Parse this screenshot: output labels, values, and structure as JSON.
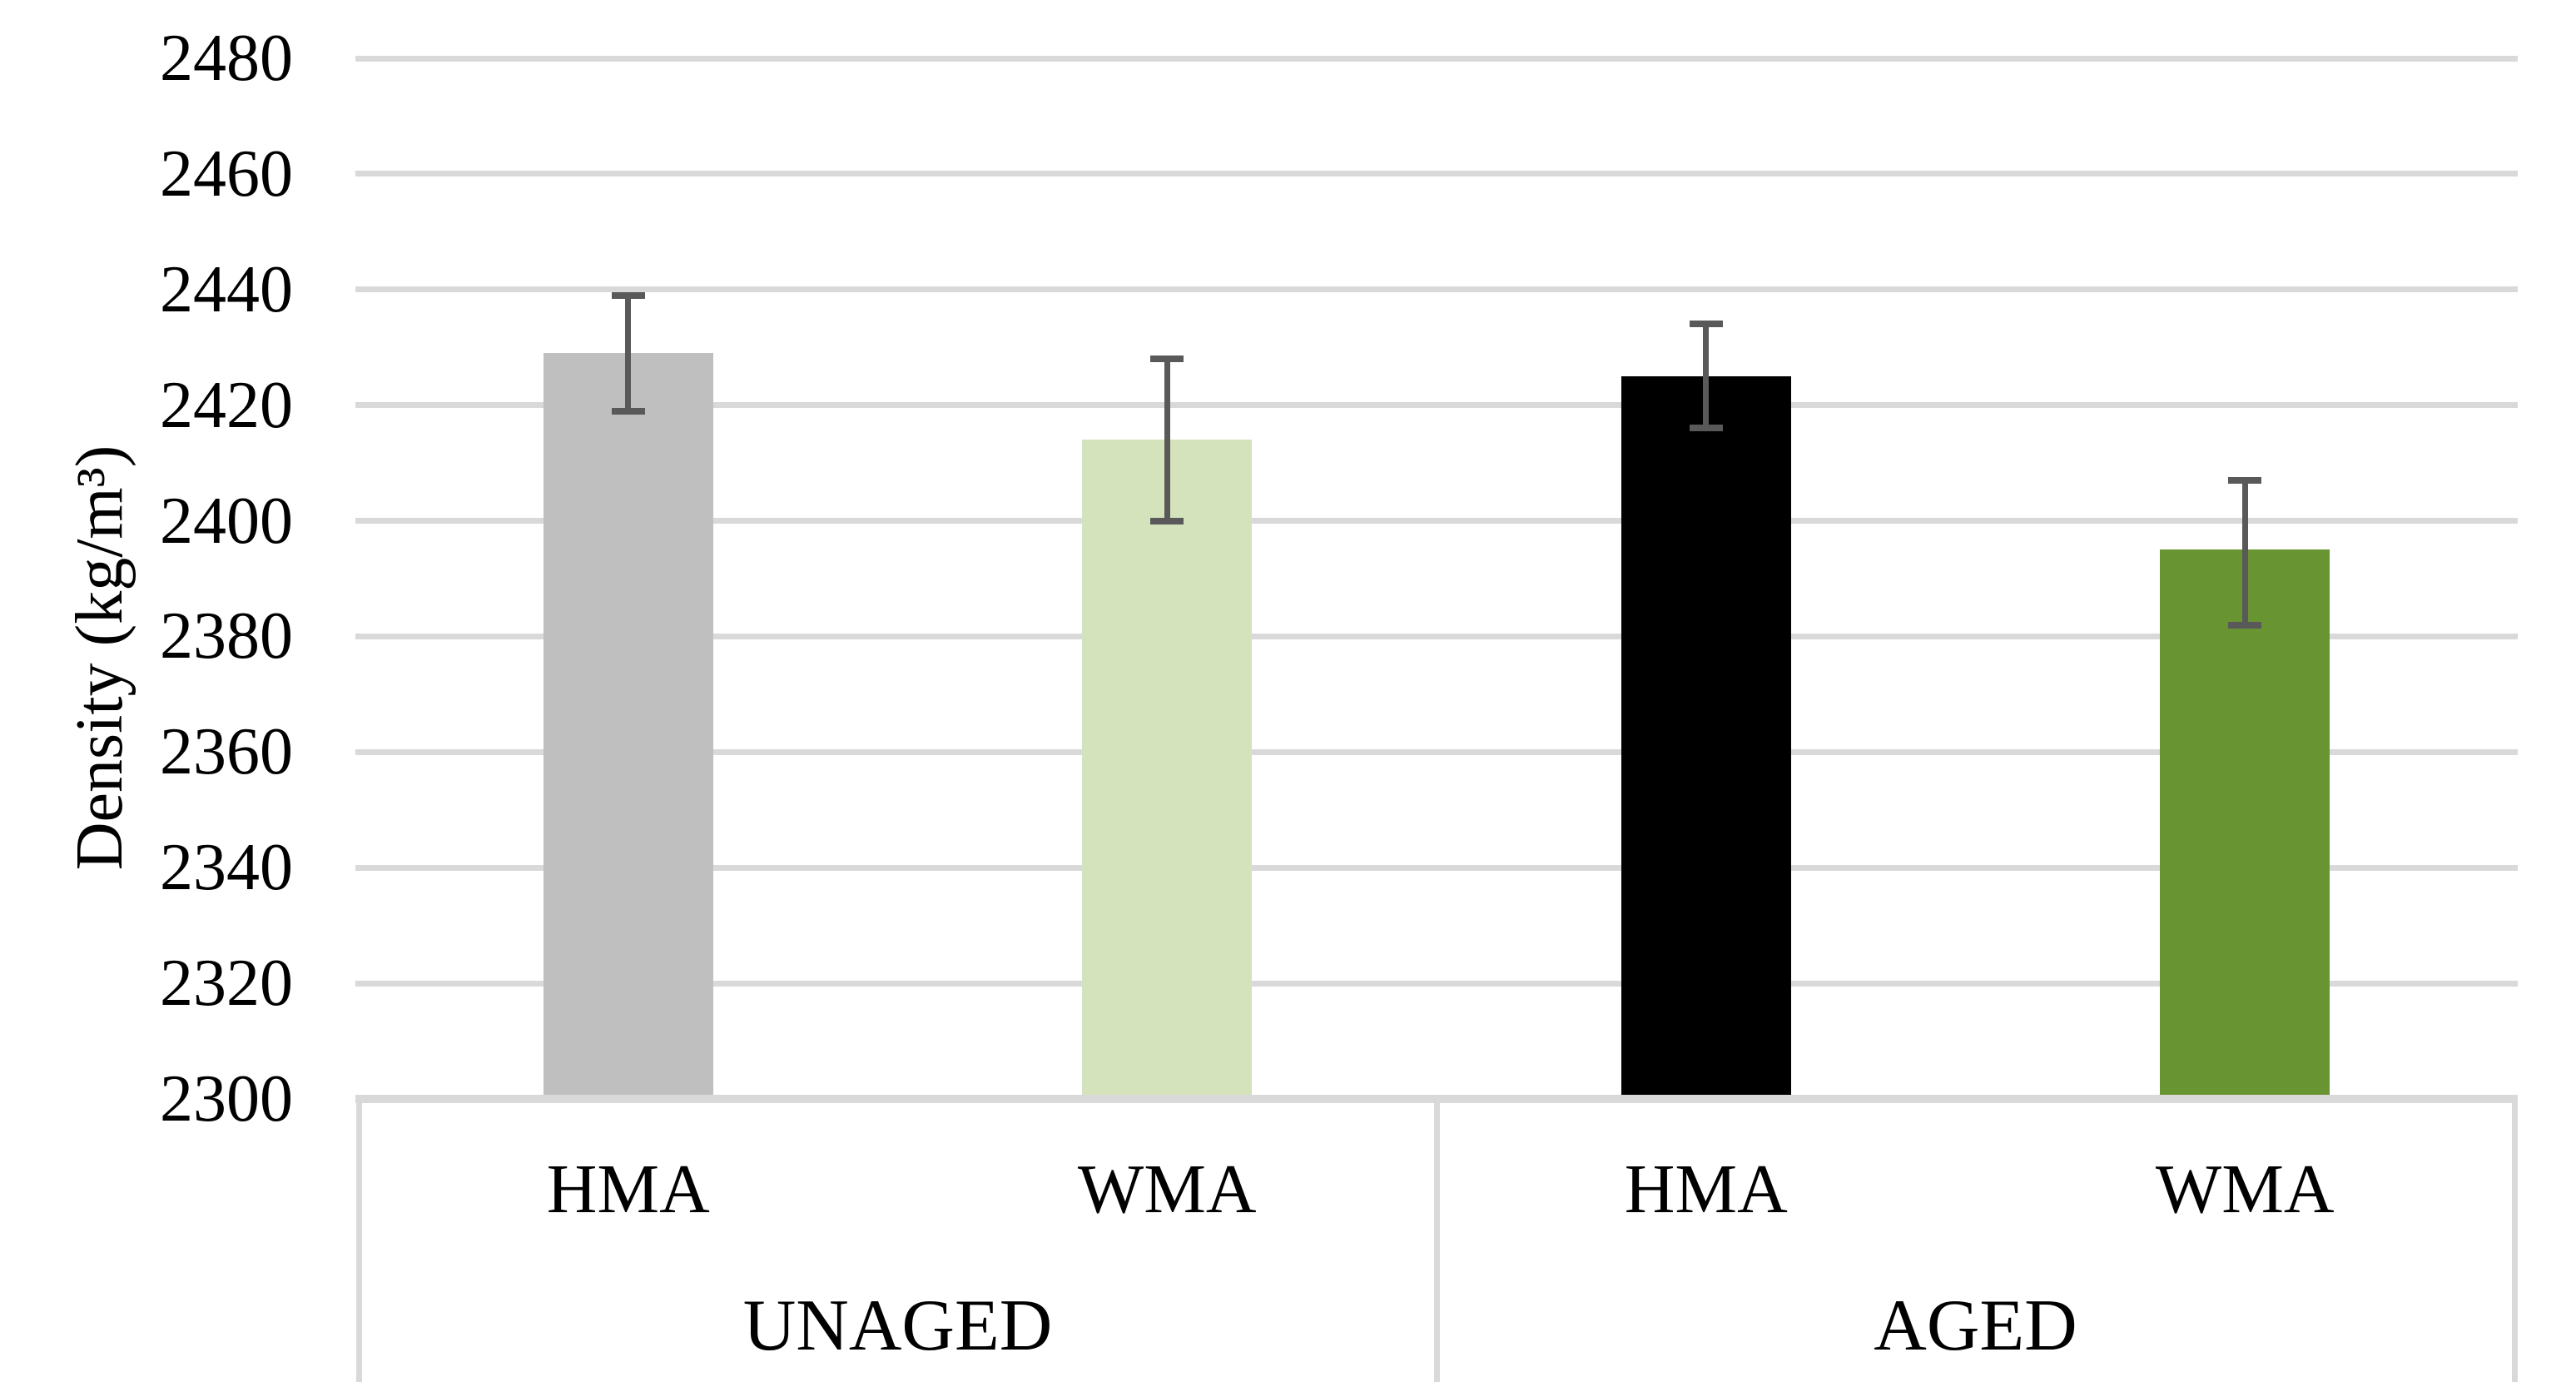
{
  "chart_data": {
    "type": "bar",
    "title": "",
    "xlabel": "",
    "ylabel": "Density (kg/m³)",
    "ylim": [
      2300,
      2480
    ],
    "ytick_step": 20,
    "yticks": [
      2300,
      2320,
      2340,
      2360,
      2380,
      2400,
      2420,
      2440,
      2460,
      2480
    ],
    "grid": true,
    "legend_position": "none",
    "groups": [
      {
        "label": "UNAGED",
        "bars": [
          {
            "label": "HMA",
            "value": 2429,
            "error_low": 2419,
            "error_high": 2439,
            "color": "#BFBFBF"
          },
          {
            "label": "WMA",
            "value": 2414,
            "error_low": 2400,
            "error_high": 2428,
            "color": "#D4E3BC"
          }
        ]
      },
      {
        "label": "AGED",
        "bars": [
          {
            "label": "HMA",
            "value": 2425,
            "error_low": 2416,
            "error_high": 2434,
            "color": "#000000"
          },
          {
            "label": "WMA",
            "value": 2395,
            "error_low": 2382,
            "error_high": 2407,
            "color": "#699432"
          }
        ]
      }
    ],
    "colors": {
      "gridline": "#D9D9D9",
      "axis_line": "#D9D9D9",
      "error_bar": "#595959",
      "text": "#000000",
      "background": "#FFFFFF"
    }
  }
}
